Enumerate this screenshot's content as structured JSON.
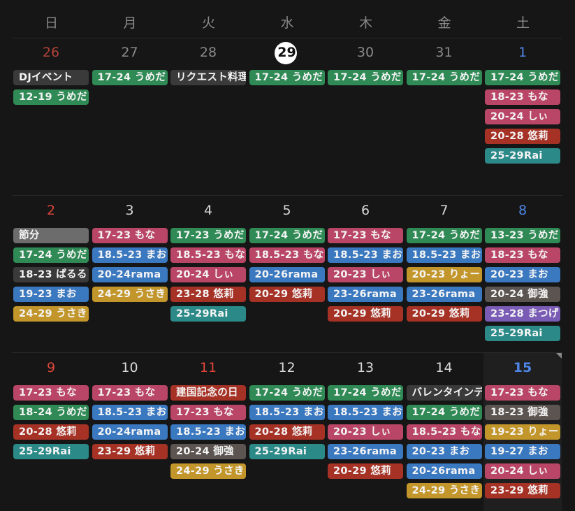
{
  "weekdays": [
    "日",
    "月",
    "火",
    "水",
    "木",
    "金",
    "土"
  ],
  "weeks": [
    {
      "days": [
        {
          "num": "26",
          "muted": true,
          "events": [
            {
              "label": "DJイベント",
              "color": "dark"
            },
            {
              "label": "12-19 うめだ",
              "color": "green"
            }
          ]
        },
        {
          "num": "27",
          "muted": true,
          "events": [
            {
              "label": "17-24 うめだ",
              "color": "green"
            }
          ]
        },
        {
          "num": "28",
          "muted": true,
          "events": [
            {
              "label": "リクエスト料理",
              "color": "dark"
            }
          ]
        },
        {
          "num": "29",
          "muted": false,
          "today": true,
          "events": [
            {
              "label": "17-24 うめだ",
              "color": "green"
            }
          ]
        },
        {
          "num": "30",
          "muted": true,
          "events": [
            {
              "label": "17-24 うめだ",
              "color": "green"
            }
          ]
        },
        {
          "num": "31",
          "muted": true,
          "events": [
            {
              "label": "17-24 うめだ",
              "color": "green"
            }
          ]
        },
        {
          "num": "1",
          "muted": false,
          "events": [
            {
              "label": "17-24 うめだ",
              "color": "green"
            },
            {
              "label": "18-23 もな",
              "color": "pink"
            },
            {
              "label": "20-24 しぃ",
              "color": "pink"
            },
            {
              "label": "20-28 悠莉",
              "color": "red"
            },
            {
              "label": "25-29Rai",
              "color": "teal"
            }
          ]
        }
      ]
    },
    {
      "days": [
        {
          "num": "2",
          "events": [
            {
              "label": "節分",
              "color": "grey"
            },
            {
              "label": "17-24 うめだ",
              "color": "green"
            },
            {
              "label": "18-23 ぱるる",
              "color": "dark"
            },
            {
              "label": "19-23 まお",
              "color": "blue"
            },
            {
              "label": "24-29 うさき",
              "color": "gold"
            }
          ]
        },
        {
          "num": "3",
          "events": [
            {
              "label": "17-23 もな",
              "color": "pink"
            },
            {
              "label": "18.5-23 まお",
              "color": "blue"
            },
            {
              "label": "20-24rama",
              "color": "blue"
            },
            {
              "label": "24-29 うさき",
              "color": "gold"
            }
          ]
        },
        {
          "num": "4",
          "events": [
            {
              "label": "17-23 うめだ",
              "color": "green"
            },
            {
              "label": "18.5-23 もな",
              "color": "pink"
            },
            {
              "label": "20-24 しぃ",
              "color": "pink"
            },
            {
              "label": "23-28 悠莉",
              "color": "red"
            },
            {
              "label": "25-29Rai",
              "color": "teal"
            }
          ]
        },
        {
          "num": "5",
          "events": [
            {
              "label": "17-24 うめだ",
              "color": "green"
            },
            {
              "label": "18.5-23 もな",
              "color": "pink"
            },
            {
              "label": "20-26rama",
              "color": "blue"
            },
            {
              "label": "20-29 悠莉",
              "color": "red"
            }
          ]
        },
        {
          "num": "6",
          "events": [
            {
              "label": "17-23 もな",
              "color": "pink"
            },
            {
              "label": "18.5-23 まお",
              "color": "blue"
            },
            {
              "label": "20-23 しぃ",
              "color": "pink"
            },
            {
              "label": "23-26rama",
              "color": "blue"
            },
            {
              "label": "20-29 悠莉",
              "color": "red"
            }
          ]
        },
        {
          "num": "7",
          "events": [
            {
              "label": "17-24 うめだ",
              "color": "green"
            },
            {
              "label": "18.5-23 まお",
              "color": "blue"
            },
            {
              "label": "20-23 りょー",
              "color": "gold"
            },
            {
              "label": "23-26rama",
              "color": "blue"
            },
            {
              "label": "20-29 悠莉",
              "color": "red"
            }
          ]
        },
        {
          "num": "8",
          "events": [
            {
              "label": "13-23 うめだ",
              "color": "green"
            },
            {
              "label": "18-23 もな",
              "color": "pink"
            },
            {
              "label": "20-23 まお",
              "color": "blue"
            },
            {
              "label": "20-24 御強",
              "color": "brown"
            },
            {
              "label": "23-28 まつげ",
              "color": "purple"
            },
            {
              "label": "25-29Rai",
              "color": "teal"
            }
          ]
        }
      ]
    },
    {
      "days": [
        {
          "num": "9",
          "events": [
            {
              "label": "17-23 もな",
              "color": "pink"
            },
            {
              "label": "18-24 うめだ",
              "color": "green"
            },
            {
              "label": "20-28 悠莉",
              "color": "red"
            },
            {
              "label": "25-29Rai",
              "color": "teal"
            }
          ]
        },
        {
          "num": "10",
          "events": [
            {
              "label": "17-23 もな",
              "color": "pink"
            },
            {
              "label": "18.5-23 まお",
              "color": "blue"
            },
            {
              "label": "20-24rama",
              "color": "blue"
            },
            {
              "label": "23-29 悠莉",
              "color": "red"
            }
          ]
        },
        {
          "num": "11",
          "holiday": true,
          "events": [
            {
              "label": "建国記念の日",
              "color": "red"
            },
            {
              "label": "17-23 もな",
              "color": "pink"
            },
            {
              "label": "18.5-23 まお",
              "color": "blue"
            },
            {
              "label": "20-24 御強",
              "color": "brown"
            },
            {
              "label": "24-29 うさき",
              "color": "gold"
            }
          ]
        },
        {
          "num": "12",
          "events": [
            {
              "label": "17-24 うめだ",
              "color": "green"
            },
            {
              "label": "18.5-23 まお",
              "color": "blue"
            },
            {
              "label": "20-28 悠莉",
              "color": "red"
            },
            {
              "label": "25-29Rai",
              "color": "teal"
            }
          ]
        },
        {
          "num": "13",
          "events": [
            {
              "label": "17-24 うめだ",
              "color": "green"
            },
            {
              "label": "18.5-23 まお",
              "color": "blue"
            },
            {
              "label": "20-23 しぃ",
              "color": "pink"
            },
            {
              "label": "23-26rama",
              "color": "blue"
            },
            {
              "label": "20-29 悠莉",
              "color": "red"
            }
          ]
        },
        {
          "num": "14",
          "events": [
            {
              "label": "バレンタインデー",
              "color": "dark"
            },
            {
              "label": "17-24 うめだ",
              "color": "green"
            },
            {
              "label": "18.5-23 もな",
              "color": "pink"
            },
            {
              "label": "20-23 まお",
              "color": "blue"
            },
            {
              "label": "20-26rama",
              "color": "blue"
            },
            {
              "label": "24-29 うさき",
              "color": "gold"
            }
          ]
        },
        {
          "num": "15",
          "selected": true,
          "events": [
            {
              "label": "17-23 もな",
              "color": "pink"
            },
            {
              "label": "18-23 御強",
              "color": "brown"
            },
            {
              "label": "19-23 りょー",
              "color": "gold"
            },
            {
              "label": "19-27 まお",
              "color": "blue"
            },
            {
              "label": "20-24 しぃ",
              "color": "pink"
            },
            {
              "label": "23-29 悠莉",
              "color": "red"
            }
          ]
        }
      ]
    }
  ]
}
